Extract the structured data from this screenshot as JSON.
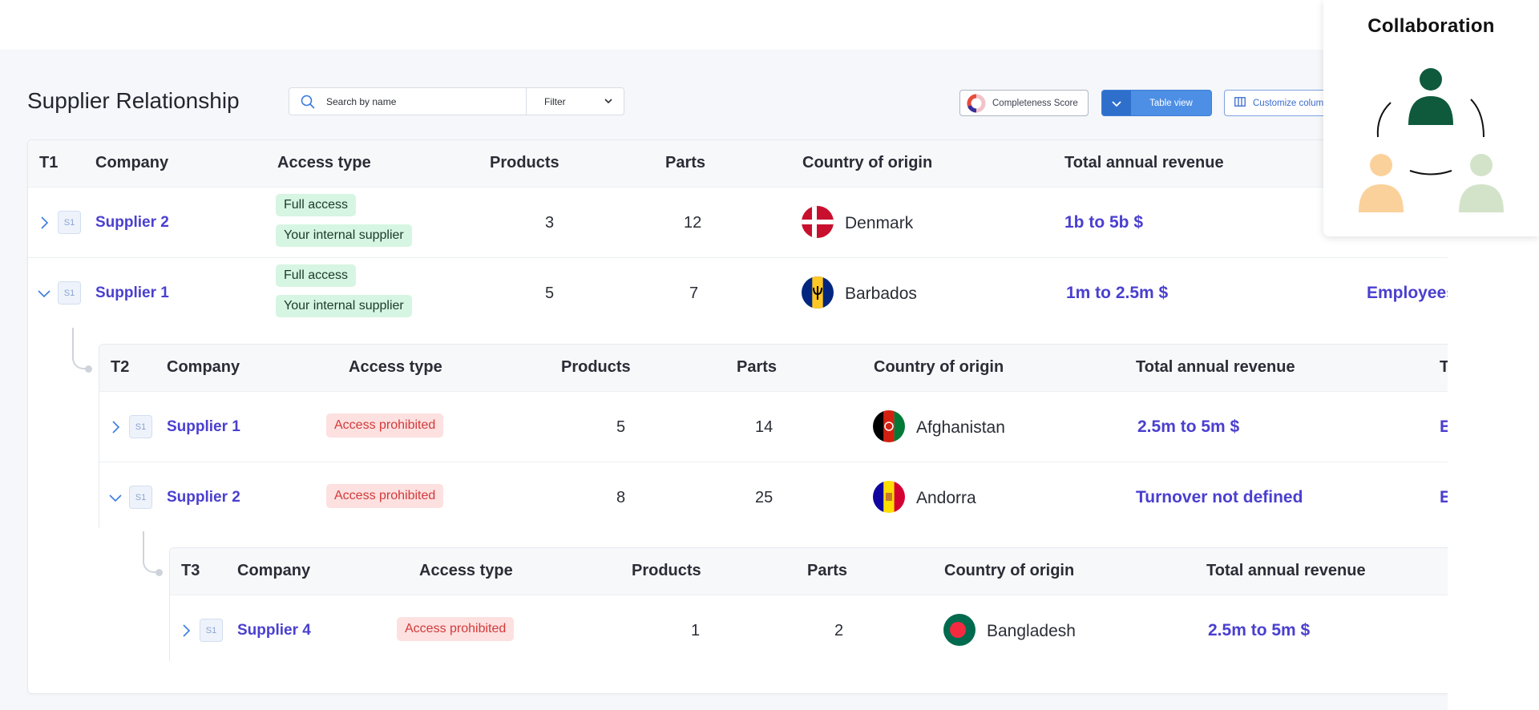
{
  "page": {
    "title": "Supplier Relationship"
  },
  "search": {
    "placeholder": "Search by name",
    "filter_label": "Filter"
  },
  "toolbar": {
    "completeness_label": "Completeness Score",
    "table_view_label": "Table view",
    "customize_label": "Customize colum"
  },
  "collaboration": {
    "title": "Collaboration"
  },
  "columns": {
    "company": "Company",
    "access": "Access type",
    "products": "Products",
    "parts": "Parts",
    "country": "Country of origin",
    "revenue": "Total annual revenue",
    "t2_cut": "T"
  },
  "tier1": {
    "tier": "T1",
    "rows": [
      {
        "badge": "S1",
        "company": "Supplier 2",
        "access": [
          "Full access",
          "Your internal supplier"
        ],
        "products": "3",
        "parts": "12",
        "country": "Denmark",
        "revenue": "1b to 5b $",
        "extra": ""
      },
      {
        "badge": "S1",
        "company": "Supplier 1",
        "access": [
          "Full access",
          "Your internal supplier"
        ],
        "products": "5",
        "parts": "7",
        "country": "Barbados",
        "revenue": "1m to 2.5m $",
        "extra": "Employees"
      }
    ]
  },
  "tier2": {
    "tier": "T2",
    "rows": [
      {
        "badge": "S1",
        "company": "Supplier 1",
        "access": "Access prohibited",
        "products": "5",
        "parts": "14",
        "country": "Afghanistan",
        "revenue": "2.5m to 5m $",
        "extra": "E"
      },
      {
        "badge": "S1",
        "company": "Supplier 2",
        "access": "Access prohibited",
        "products": "8",
        "parts": "25",
        "country": "Andorra",
        "revenue": "Turnover not defined",
        "extra": "E"
      }
    ]
  },
  "tier3": {
    "tier": "T3",
    "rows": [
      {
        "badge": "S1",
        "company": "Supplier 4",
        "access": "Access prohibited",
        "products": "1",
        "parts": "2",
        "country": "Bangladesh",
        "revenue": "2.5m to 5m $"
      }
    ]
  },
  "colors": {
    "link": "#4a3fcf",
    "tag_green_bg": "#d6f5e2",
    "tag_red_bg": "#fde0e0",
    "tag_red_text": "#d23a3a",
    "primary_button": "#4e8fe6"
  }
}
